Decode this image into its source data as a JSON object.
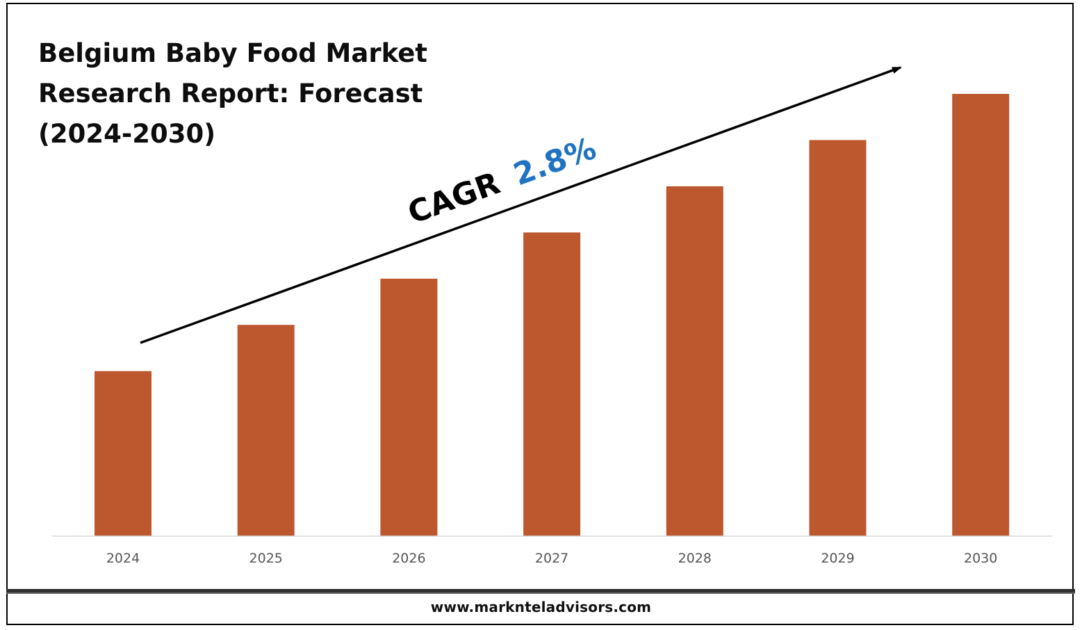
{
  "chart_data": {
    "type": "bar",
    "title_lines": [
      "Belgium Baby Food Market",
      "Research Report: Forecast",
      "(2024-2030)"
    ],
    "categories": [
      "2024",
      "2025",
      "2026",
      "2027",
      "2028",
      "2029",
      "2030"
    ],
    "values": [
      1.0,
      1.28,
      1.56,
      1.84,
      2.12,
      2.4,
      2.68
    ],
    "ylim": [
      0,
      2.68
    ],
    "xlabel": "",
    "ylabel": "",
    "grid": false,
    "legend": "none",
    "annotation": {
      "prefix": "CAGR",
      "value": "2.8%"
    }
  },
  "colors": {
    "bar": "#bc572e",
    "cagr_value": "#1f73c1",
    "axis": "#d9d9d9"
  },
  "footer": {
    "website": "www.marknteladvisors.com"
  }
}
